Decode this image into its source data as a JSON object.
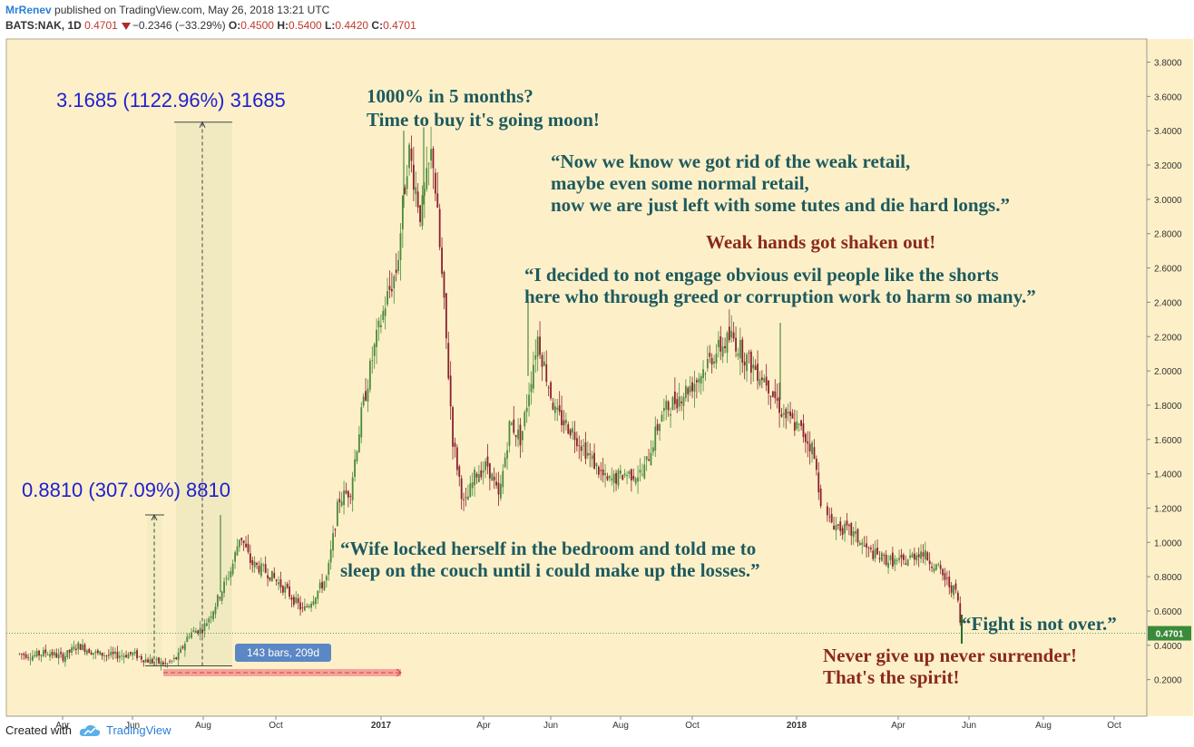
{
  "header": {
    "author": "MrRenev",
    "published": " published on TradingView.com, May 26, 2018 13:21 UTC",
    "symbol": "BATS:NAK, 1D",
    "last": "0.4701",
    "change": "−0.2346 (−33.29%)",
    "open_label": "O:",
    "open": "0.4500",
    "high_label": "H:",
    "high": "0.5400",
    "low_label": "L:",
    "low": "0.4420",
    "close_label": "C:",
    "close": "0.4701"
  },
  "footer": {
    "created_with": "Created with",
    "brand": "TradingView",
    "logo_icon": "tradingview-cloud-icon"
  },
  "colors": {
    "background": "#fdf0c8",
    "up_candle": "#4a8a3c",
    "down_candle": "#8a2030",
    "note_teal": "#1e5a5e",
    "note_red": "#8b2a1a",
    "measure_blue": "#2020d0",
    "price_label": "#3a8a3a"
  },
  "chart_data": {
    "type": "candlestick",
    "title": "",
    "ylim": [
      0.1,
      3.9
    ],
    "x_tick_labels": [
      "Apr",
      "Jun",
      "Aug",
      "Oct",
      "2017",
      "Apr",
      "Jun",
      "Aug",
      "Oct",
      "2018",
      "Apr",
      "Jun",
      "Aug",
      "Oct"
    ],
    "y_tick_labels": [
      "3.8000",
      "3.6000",
      "3.4000",
      "3.2000",
      "3.0000",
      "2.8000",
      "2.6000",
      "2.4000",
      "2.2000",
      "2.0000",
      "1.8000",
      "1.6000",
      "1.4000",
      "1.2000",
      "1.0000",
      "0.8000",
      "0.6000",
      "0.4000",
      "0.2000"
    ],
    "y_ticks": [
      3.8,
      3.6,
      3.4,
      3.2,
      3.0,
      2.8,
      2.6,
      2.4,
      2.2,
      2.0,
      1.8,
      1.6,
      1.4,
      1.2,
      1.0,
      0.8,
      0.6,
      0.4,
      0.2
    ],
    "last_price_label": "0.4701",
    "last_price": 0.4701,
    "price_path": [
      [
        "2016-02-15",
        0.35
      ],
      [
        "2016-03-01",
        0.34
      ],
      [
        "2016-03-15",
        0.36
      ],
      [
        "2016-04-01",
        0.33
      ],
      [
        "2016-04-15",
        0.4
      ],
      [
        "2016-05-01",
        0.35
      ],
      [
        "2016-05-15",
        0.34
      ],
      [
        "2016-06-01",
        0.35
      ],
      [
        "2016-06-15",
        0.31
      ],
      [
        "2016-07-01",
        0.29
      ],
      [
        "2016-07-10",
        0.33
      ],
      [
        "2016-07-20",
        0.47
      ],
      [
        "2016-08-01",
        0.5
      ],
      [
        "2016-08-10",
        0.62
      ],
      [
        "2016-08-25",
        0.85
      ],
      [
        "2016-09-01",
        1.05
      ],
      [
        "2016-09-10",
        0.88
      ],
      [
        "2016-09-25",
        0.82
      ],
      [
        "2016-10-10",
        0.72
      ],
      [
        "2016-10-25",
        0.6
      ],
      [
        "2016-11-05",
        0.7
      ],
      [
        "2016-11-15",
        0.8
      ],
      [
        "2016-11-25",
        1.25
      ],
      [
        "2016-12-05",
        1.3
      ],
      [
        "2016-12-15",
        1.75
      ],
      [
        "2016-12-25",
        2.1
      ],
      [
        "2017-01-05",
        2.4
      ],
      [
        "2017-01-15",
        2.6
      ],
      [
        "2017-01-25",
        3.3
      ],
      [
        "2017-02-05",
        2.9
      ],
      [
        "2017-02-15",
        3.3
      ],
      [
        "2017-02-25",
        2.4
      ],
      [
        "2017-03-05",
        1.6
      ],
      [
        "2017-03-15",
        1.2
      ],
      [
        "2017-03-25",
        1.4
      ],
      [
        "2017-04-05",
        1.45
      ],
      [
        "2017-04-15",
        1.25
      ],
      [
        "2017-04-25",
        1.7
      ],
      [
        "2017-05-05",
        1.6
      ],
      [
        "2017-05-20",
        2.2
      ],
      [
        "2017-06-05",
        1.75
      ],
      [
        "2017-06-20",
        1.65
      ],
      [
        "2017-07-05",
        1.5
      ],
      [
        "2017-07-20",
        1.35
      ],
      [
        "2017-08-05",
        1.4
      ],
      [
        "2017-08-20",
        1.4
      ],
      [
        "2017-09-05",
        1.75
      ],
      [
        "2017-09-20",
        1.85
      ],
      [
        "2017-10-05",
        1.95
      ],
      [
        "2017-10-20",
        2.1
      ],
      [
        "2017-11-05",
        2.2
      ],
      [
        "2017-11-20",
        2.05
      ],
      [
        "2017-12-05",
        1.95
      ],
      [
        "2017-12-20",
        1.75
      ],
      [
        "2018-01-05",
        1.65
      ],
      [
        "2018-01-15",
        1.55
      ],
      [
        "2018-01-25",
        1.15
      ],
      [
        "2018-02-05",
        1.1
      ],
      [
        "2018-02-20",
        1.05
      ],
      [
        "2018-03-05",
        0.95
      ],
      [
        "2018-03-20",
        0.9
      ],
      [
        "2018-04-05",
        0.88
      ],
      [
        "2018-04-20",
        0.95
      ],
      [
        "2018-05-05",
        0.85
      ],
      [
        "2018-05-15",
        0.75
      ],
      [
        "2018-05-22",
        0.7
      ],
      [
        "2018-05-25",
        0.47
      ]
    ],
    "measurements": [
      {
        "label": "0.8810 (307.09%) 8810",
        "from_price": 0.28,
        "to_price": 1.16
      },
      {
        "label": "3.1685 (1122.96%) 31685",
        "from_price": 0.28,
        "to_price": 3.45
      }
    ],
    "date_range_label": "143 bars, 209d",
    "annotations": [
      {
        "lines": [
          "1000% in 5 months?",
          "Time to buy it's going moon!"
        ],
        "color": "teal"
      },
      {
        "lines": [
          "“Now we know we got rid of the weak retail,",
          "maybe even some normal retail,",
          "now we are just left with some tutes and die hard longs.”"
        ],
        "color": "teal"
      },
      {
        "lines": [
          "Weak hands got shaken out!"
        ],
        "color": "red"
      },
      {
        "lines": [
          "“I decided to not engage obvious evil people like the shorts",
          "here who through greed or corruption work to harm so many.”"
        ],
        "color": "teal"
      },
      {
        "lines": [
          "“Wife locked herself in the bedroom and told me to",
          "sleep on the couch until i could make up the losses.”"
        ],
        "color": "teal"
      },
      {
        "lines": [
          "“Fight is not over.”"
        ],
        "color": "teal"
      },
      {
        "lines": [
          "Never give up never surrender!",
          "That's the spirit!"
        ],
        "color": "red"
      }
    ]
  }
}
